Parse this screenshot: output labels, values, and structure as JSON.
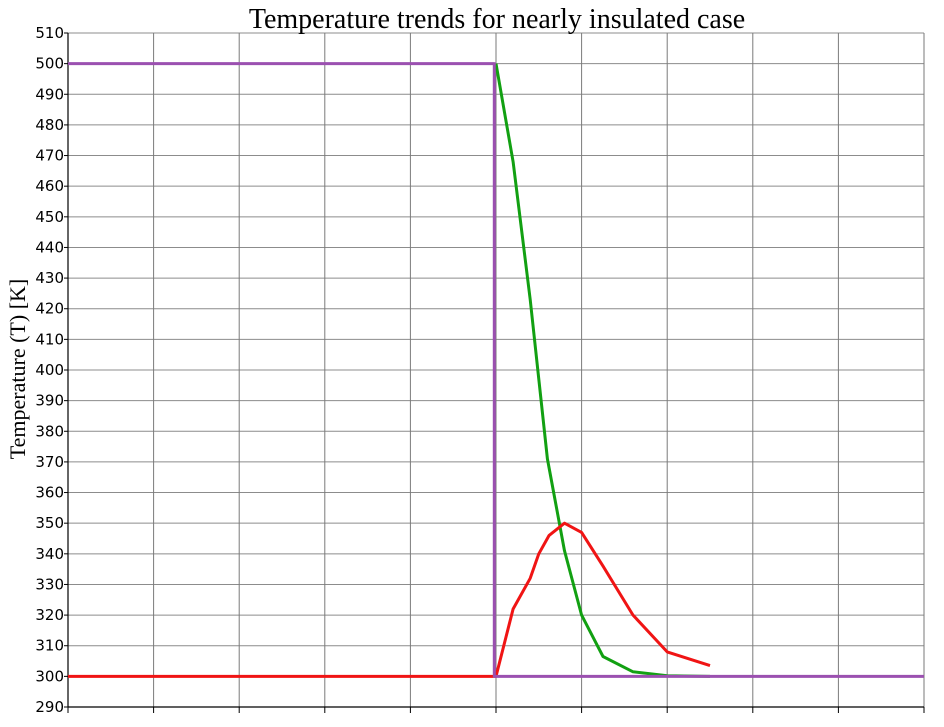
{
  "chart_data": {
    "type": "line",
    "title": "Temperature trends for nearly insulated case",
    "xlabel": "",
    "ylabel": "Temperature (T) [K]",
    "xlim": [
      0,
      10
    ],
    "ylim": [
      290,
      510
    ],
    "yticks": [
      "290",
      "300",
      "310",
      "320",
      "330",
      "340",
      "350",
      "360",
      "370",
      "380",
      "390",
      "400",
      "410",
      "420",
      "430",
      "440",
      "450",
      "460",
      "470",
      "480",
      "490",
      "500",
      "510"
    ],
    "grid": true,
    "legend": "none",
    "series": [
      {
        "color": "#12a012",
        "x": [
          5.0,
          5.2,
          5.4,
          5.6,
          5.8,
          6.0,
          6.25,
          6.6,
          7.0,
          7.5
        ],
        "y": [
          500,
          468,
          423,
          371,
          341,
          320,
          306.5,
          301.5,
          300.2,
          300
        ]
      },
      {
        "color": "#f01414",
        "x": [
          0,
          5.0,
          5.2,
          5.4,
          5.5,
          5.62,
          5.8,
          6.0,
          6.25,
          6.6,
          7.0,
          7.5
        ],
        "y": [
          300,
          300,
          322,
          332,
          340,
          346,
          350,
          347,
          336,
          320,
          308,
          303.5
        ]
      },
      {
        "color": "#9b50b0",
        "x": [
          0,
          4.98,
          4.98,
          10
        ],
        "y": [
          500,
          500,
          300,
          300
        ]
      }
    ]
  }
}
